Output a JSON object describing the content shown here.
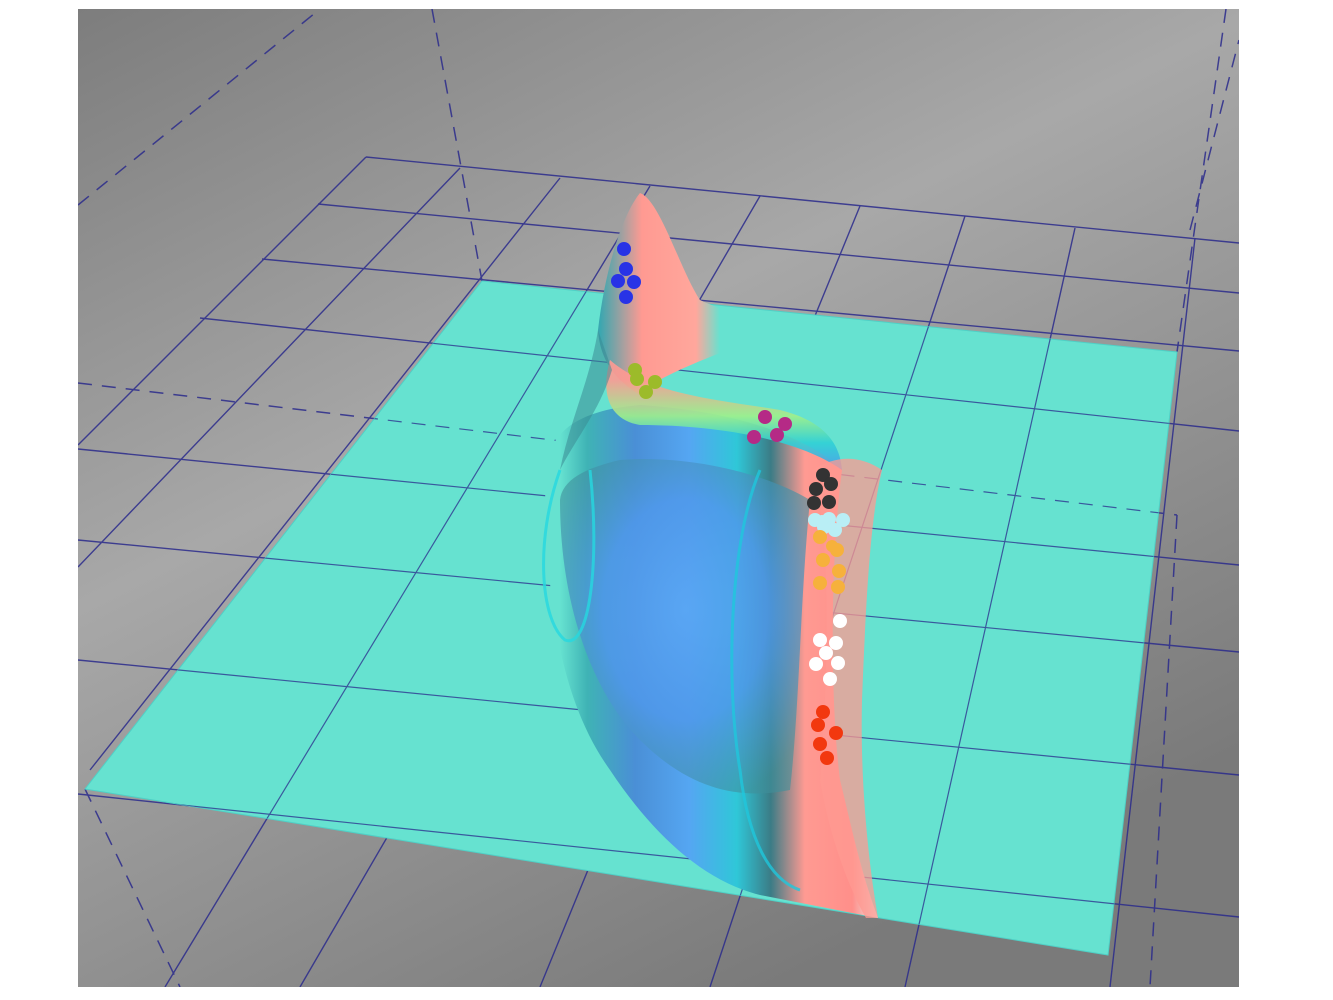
{
  "scene": {
    "description_visible_text": "",
    "colors": {
      "background_light": "#b4b4b4",
      "background_dark": "#7a7a7a",
      "grid_line": "#2b2b8c",
      "plane": "#66e2d0",
      "ridge_pink": "#ff9a92",
      "valley_blue": "#4f9df5"
    },
    "clusters": [
      {
        "name": "blue-cluster",
        "color": "#2833e6",
        "count": 5
      },
      {
        "name": "olive-cluster",
        "color": "#9cbb2a",
        "count": 4
      },
      {
        "name": "magenta-cluster",
        "color": "#b52a86",
        "count": 4
      },
      {
        "name": "black-cluster",
        "color": "#333333",
        "count": 5
      },
      {
        "name": "lightcyan-cluster",
        "color": "#b9eef5",
        "count": 6
      },
      {
        "name": "orange-cluster",
        "color": "#f6b13c",
        "count": 7
      },
      {
        "name": "white-cluster",
        "color": "#ffffff",
        "count": 7
      },
      {
        "name": "red-cluster",
        "color": "#f2380f",
        "count": 5
      }
    ]
  }
}
